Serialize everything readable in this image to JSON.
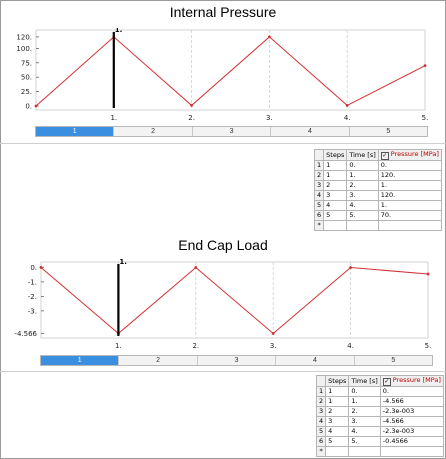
{
  "panels": [
    {
      "title": "Internal Pressure",
      "chart_data": {
        "type": "line",
        "x": [
          0,
          1,
          2,
          3,
          4,
          5
        ],
        "values": [
          0,
          120,
          1,
          120,
          1,
          70
        ],
        "xlim": [
          0,
          5
        ],
        "ylim": [
          0,
          125
        ],
        "xticks": [
          "1.",
          "2.",
          "3.",
          "4.",
          "5."
        ],
        "yticks": [
          "120.",
          "100.",
          "75.",
          "50.",
          "25.",
          "0."
        ],
        "ytick_values": [
          120,
          100,
          75,
          50,
          25,
          0
        ],
        "marker_x": 1,
        "marker_label": "1.",
        "line_color": "#d23030",
        "grid": true
      },
      "timeline": {
        "steps": [
          "1",
          "2",
          "3",
          "4",
          "5"
        ],
        "active": 0
      },
      "table": {
        "headers": {
          "steps": "Steps",
          "time": "Time [s]",
          "value": "Pressure [MPa]"
        },
        "rows": [
          {
            "n": "1",
            "step": "1",
            "time": "0.",
            "value": "0."
          },
          {
            "n": "2",
            "step": "1",
            "time": "1.",
            "value": "120."
          },
          {
            "n": "3",
            "step": "2",
            "time": "2.",
            "value": "1."
          },
          {
            "n": "4",
            "step": "3",
            "time": "3.",
            "value": "120."
          },
          {
            "n": "5",
            "step": "4",
            "time": "4.",
            "value": "1."
          },
          {
            "n": "6",
            "step": "5",
            "time": "5.",
            "value": "70."
          }
        ],
        "new_row_marker": "*"
      }
    },
    {
      "title": "End Cap Load",
      "chart_data": {
        "type": "line",
        "x": [
          0,
          1,
          2,
          3,
          4,
          5
        ],
        "values": [
          0,
          -4.566,
          -0.0023,
          -4.566,
          -0.0023,
          -0.4566
        ],
        "xlim": [
          0,
          5
        ],
        "ylim": [
          -4.6,
          0.1
        ],
        "xticks": [
          "1.",
          "2.",
          "3.",
          "4.",
          "5."
        ],
        "yticks": [
          "0.",
          "-1.",
          "-2.",
          "-3.",
          "-4.566"
        ],
        "ytick_values": [
          0,
          -1,
          -2,
          -3,
          -4.566
        ],
        "marker_x": 1,
        "marker_label": "1.",
        "line_color": "#d23030",
        "grid": true
      },
      "timeline": {
        "steps": [
          "1",
          "2",
          "3",
          "4",
          "5"
        ],
        "active": 0
      },
      "table": {
        "headers": {
          "steps": "Steps",
          "time": "Time [s]",
          "value": "Pressure [MPa]"
        },
        "rows": [
          {
            "n": "1",
            "step": "1",
            "time": "0.",
            "value": "0."
          },
          {
            "n": "2",
            "step": "1",
            "time": "1.",
            "value": "-4.566"
          },
          {
            "n": "3",
            "step": "2",
            "time": "2.",
            "value": "-2.3e-003"
          },
          {
            "n": "4",
            "step": "3",
            "time": "3.",
            "value": "-4.566"
          },
          {
            "n": "5",
            "step": "4",
            "time": "4.",
            "value": "-2.3e-003"
          },
          {
            "n": "6",
            "step": "5",
            "time": "5.",
            "value": "-0.4566"
          }
        ],
        "new_row_marker": "*"
      }
    }
  ]
}
